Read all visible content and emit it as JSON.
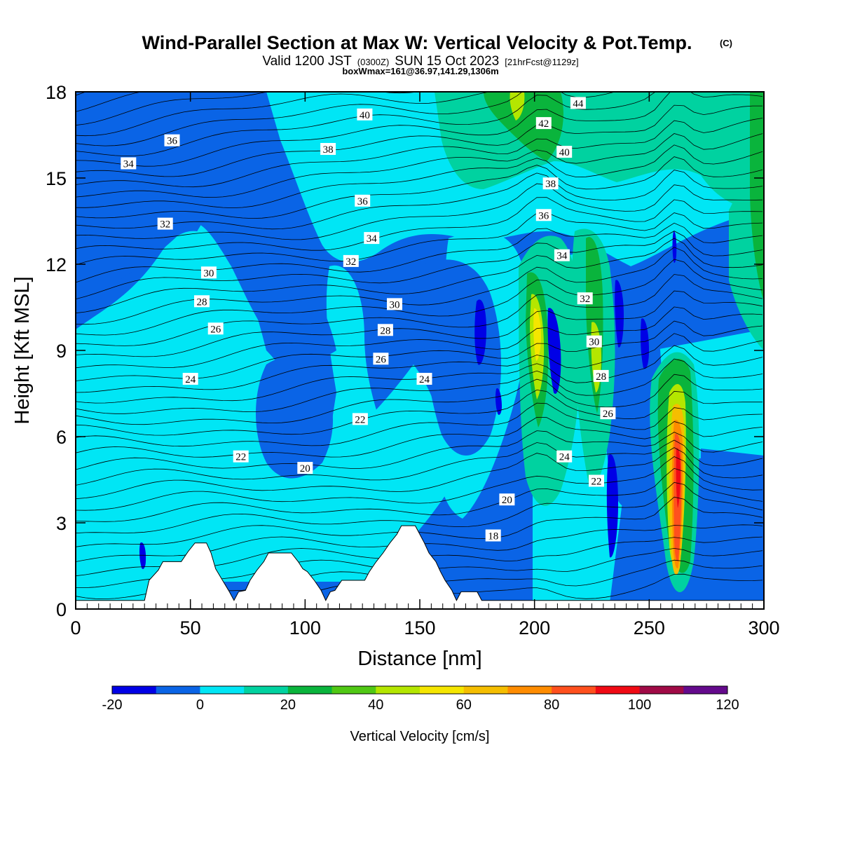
{
  "title": {
    "main": "Wind-Parallel Section at Max W: Vertical Velocity & Pot.Temp.",
    "copyright": "(C)",
    "valid_prefix": "Valid 1200 JST",
    "valid_utc": "(0300Z)",
    "valid_date": "SUN 15 Oct 2023",
    "forecast": "[21hrFcst@1129z]",
    "boxwmax": "boxWmax=161@36.97,141.29,1306m"
  },
  "chart_data": {
    "type": "heatmap",
    "description_of_fields": "filled contours of vertical velocity with potential temperature line contours",
    "xlabel": "Distance [nm]",
    "ylabel": "Height [Kft MSL]",
    "xlim": [
      0,
      300
    ],
    "ylim": [
      0,
      18
    ],
    "x_ticks": [
      0,
      50,
      100,
      150,
      200,
      250,
      300
    ],
    "y_ticks": [
      0,
      3,
      6,
      9,
      12,
      15,
      18
    ],
    "colorbar": {
      "label": "Vertical Velocity [cm/s]",
      "levels": [
        -20,
        -10,
        0,
        10,
        20,
        30,
        40,
        50,
        60,
        70,
        80,
        90,
        100,
        110,
        120
      ],
      "tick_labels": [
        "-20",
        "0",
        "20",
        "40",
        "60",
        "80",
        "100",
        "120"
      ],
      "tick_values": [
        -20,
        0,
        20,
        40,
        60,
        80,
        100,
        120
      ],
      "colors": [
        "#0000e6",
        "#0a64e6",
        "#00e6f5",
        "#00d2a0",
        "#0ab43c",
        "#50c814",
        "#b4e600",
        "#f5e600",
        "#f5be00",
        "#ff8c00",
        "#ff501e",
        "#f00a14",
        "#a00a46",
        "#640a8c"
      ]
    },
    "theta_contour_labels": [
      {
        "x": 42,
        "y": 16.3,
        "v": "36"
      },
      {
        "x": 23,
        "y": 15.5,
        "v": "34"
      },
      {
        "x": 39,
        "y": 13.4,
        "v": "32"
      },
      {
        "x": 58,
        "y": 11.7,
        "v": "30"
      },
      {
        "x": 55,
        "y": 10.7,
        "v": "28"
      },
      {
        "x": 61,
        "y": 9.75,
        "v": "26"
      },
      {
        "x": 50,
        "y": 8.0,
        "v": "24"
      },
      {
        "x": 72,
        "y": 5.3,
        "v": "22"
      },
      {
        "x": 100,
        "y": 4.9,
        "v": "20"
      },
      {
        "x": 126,
        "y": 17.2,
        "v": "40"
      },
      {
        "x": 110,
        "y": 16.0,
        "v": "38"
      },
      {
        "x": 125,
        "y": 14.2,
        "v": "36"
      },
      {
        "x": 129,
        "y": 12.9,
        "v": "34"
      },
      {
        "x": 120,
        "y": 12.1,
        "v": "32"
      },
      {
        "x": 139,
        "y": 10.6,
        "v": "30"
      },
      {
        "x": 135,
        "y": 9.7,
        "v": "28"
      },
      {
        "x": 133,
        "y": 8.7,
        "v": "26"
      },
      {
        "x": 152,
        "y": 8.0,
        "v": "24"
      },
      {
        "x": 124,
        "y": 6.6,
        "v": "22"
      },
      {
        "x": 188,
        "y": 3.8,
        "v": "20"
      },
      {
        "x": 182,
        "y": 2.55,
        "v": "18"
      },
      {
        "x": 219,
        "y": 17.6,
        "v": "44"
      },
      {
        "x": 204,
        "y": 16.9,
        "v": "42"
      },
      {
        "x": 213,
        "y": 15.9,
        "v": "40"
      },
      {
        "x": 207,
        "y": 14.8,
        "v": "38"
      },
      {
        "x": 204,
        "y": 13.7,
        "v": "36"
      },
      {
        "x": 212,
        "y": 12.3,
        "v": "34"
      },
      {
        "x": 222,
        "y": 10.8,
        "v": "32"
      },
      {
        "x": 226,
        "y": 9.3,
        "v": "30"
      },
      {
        "x": 229,
        "y": 8.1,
        "v": "28"
      },
      {
        "x": 232,
        "y": 6.8,
        "v": "26"
      },
      {
        "x": 213,
        "y": 5.3,
        "v": "24"
      },
      {
        "x": 227,
        "y": 4.45,
        "v": "22"
      }
    ],
    "terrain_kft": [
      [
        0,
        0.3
      ],
      [
        30,
        0.3
      ],
      [
        32,
        1.0
      ],
      [
        36,
        1.35
      ],
      [
        38,
        1.65
      ],
      [
        46,
        1.65
      ],
      [
        49,
        2.0
      ],
      [
        52,
        2.3
      ],
      [
        57,
        2.3
      ],
      [
        59,
        1.95
      ],
      [
        61,
        1.4
      ],
      [
        64,
        1.0
      ],
      [
        67,
        0.6
      ],
      [
        69,
        0.3
      ],
      [
        71,
        0.6
      ],
      [
        74,
        0.65
      ],
      [
        76,
        1.0
      ],
      [
        79,
        1.35
      ],
      [
        82,
        1.65
      ],
      [
        84,
        1.95
      ],
      [
        94,
        1.95
      ],
      [
        97,
        1.65
      ],
      [
        99,
        1.4
      ],
      [
        101,
        1.3
      ],
      [
        104,
        1.0
      ],
      [
        107,
        0.65
      ],
      [
        109,
        0.3
      ],
      [
        111,
        0.6
      ],
      [
        113,
        0.65
      ],
      [
        116,
        1.0
      ],
      [
        126,
        1.0
      ],
      [
        128,
        1.3
      ],
      [
        131,
        1.65
      ],
      [
        134,
        1.95
      ],
      [
        137,
        2.3
      ],
      [
        140,
        2.6
      ],
      [
        142,
        2.9
      ],
      [
        148,
        2.9
      ],
      [
        150,
        2.6
      ],
      [
        152,
        2.3
      ],
      [
        154,
        1.95
      ],
      [
        157,
        1.65
      ],
      [
        159,
        1.3
      ],
      [
        161,
        1.0
      ],
      [
        164,
        0.65
      ],
      [
        166,
        0.3
      ],
      [
        168,
        0.6
      ],
      [
        175,
        0.6
      ],
      [
        177,
        0.3
      ],
      [
        300,
        0.3
      ]
    ]
  }
}
